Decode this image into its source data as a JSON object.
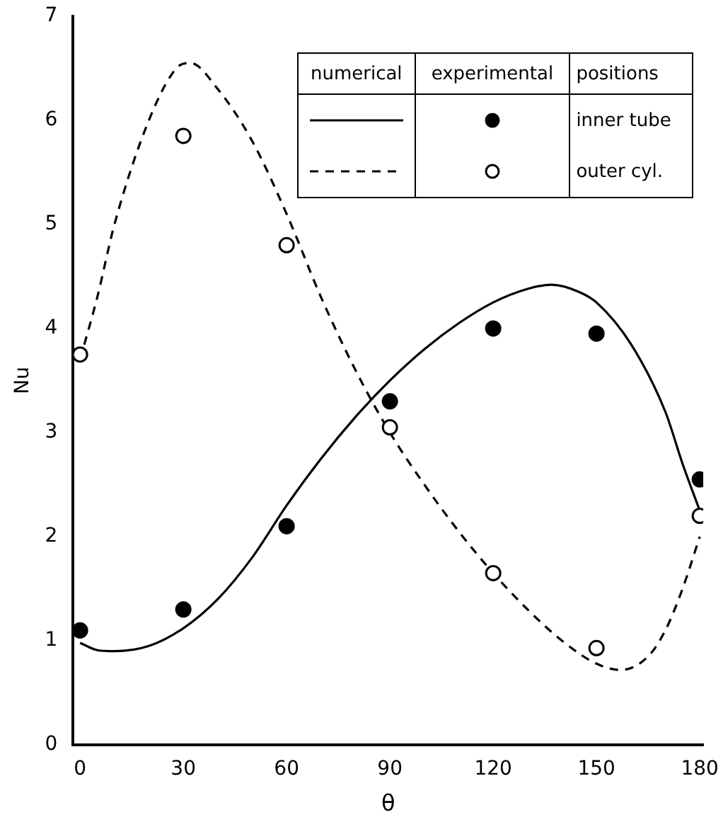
{
  "chart_data": {
    "type": "line",
    "xlabel": "θ",
    "ylabel": "Nu",
    "xlim": [
      -2,
      181
    ],
    "xticks": [
      0,
      30,
      60,
      90,
      120,
      150,
      180
    ],
    "ylim": [
      0,
      7
    ],
    "yticks": [
      0,
      1,
      2,
      3,
      4,
      5,
      6,
      7
    ],
    "grid": false,
    "annotations": [
      "numerical",
      "experimental",
      "positions",
      "inner tube",
      "outer cyl."
    ],
    "series": [
      {
        "type": "line",
        "color": "#000000",
        "line_style": "solid",
        "marker": "none",
        "x": [
          0,
          5,
          10,
          20,
          30,
          40,
          50,
          60,
          70,
          80,
          90,
          100,
          110,
          120,
          130,
          137,
          145,
          150,
          160,
          170,
          175,
          180
        ],
        "values": [
          0.98,
          0.91,
          0.9,
          0.95,
          1.12,
          1.4,
          1.8,
          2.3,
          2.75,
          3.15,
          3.5,
          3.8,
          4.05,
          4.25,
          4.38,
          4.42,
          4.35,
          4.25,
          3.85,
          3.2,
          2.7,
          2.25
        ]
      },
      {
        "type": "line",
        "color": "#000000",
        "line_style": "dashed",
        "marker": "none",
        "x": [
          0,
          5,
          10,
          20,
          28,
          32,
          40,
          50,
          60,
          70,
          80,
          90,
          100,
          110,
          120,
          130,
          140,
          150,
          157,
          165,
          170,
          175,
          180
        ],
        "values": [
          3.7,
          4.3,
          5.0,
          6.0,
          6.5,
          6.55,
          6.3,
          5.8,
          5.1,
          4.3,
          3.6,
          3.0,
          2.5,
          2.05,
          1.65,
          1.3,
          1.0,
          0.78,
          0.72,
          0.85,
          1.1,
          1.5,
          2.0
        ]
      },
      {
        "type": "scatter",
        "color": "#000000",
        "marker": "circle",
        "x": [
          0,
          30,
          60,
          90,
          120,
          150,
          180
        ],
        "values": [
          1.1,
          1.3,
          2.1,
          3.3,
          4.0,
          3.95,
          2.55
        ]
      },
      {
        "type": "scatter",
        "color": "#ffffff",
        "marker": "circle",
        "x": [
          0,
          30,
          60,
          90,
          120,
          150,
          180
        ],
        "values": [
          3.75,
          5.85,
          4.8,
          3.05,
          1.65,
          0.93,
          2.2
        ]
      }
    ]
  }
}
